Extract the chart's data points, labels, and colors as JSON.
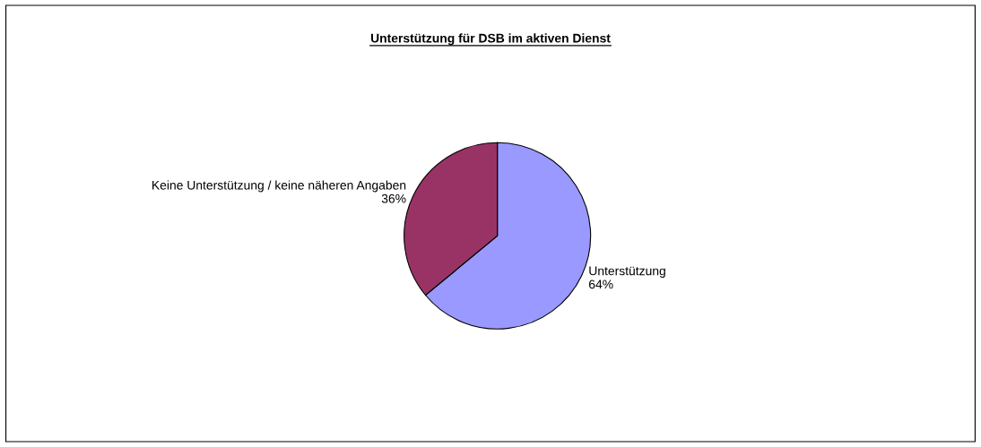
{
  "chart_data": {
    "type": "pie",
    "title": "Unterstützung für DSB im aktiven Dienst",
    "categories": [
      "Unterstützung",
      "Keine Unterstützung / keine näheren Angaben"
    ],
    "values": [
      64,
      36
    ],
    "colors": [
      "#9999ff",
      "#993366"
    ],
    "value_labels": [
      "64%",
      "36%"
    ],
    "legend": false
  }
}
